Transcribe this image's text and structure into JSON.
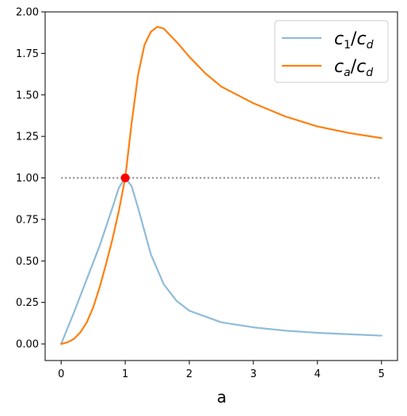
{
  "chart_data": {
    "type": "line",
    "title": "",
    "xlabel": "a",
    "ylabel": "",
    "xlim": [
      -0.25,
      5.25
    ],
    "ylim": [
      -0.1,
      2.0
    ],
    "x_ticks": [
      "0",
      "1",
      "2",
      "3",
      "4",
      "5"
    ],
    "y_ticks": [
      "0.00",
      "0.25",
      "0.50",
      "0.75",
      "1.00",
      "1.25",
      "1.50",
      "1.75",
      "2.00"
    ],
    "grid": false,
    "legend_position": "upper right",
    "series": [
      {
        "name": "c1/cd",
        "legend_main": "c",
        "legend_sub": "1",
        "legend_sub2": "d",
        "color": "#8fbcd8",
        "x": [
          0.0,
          0.2,
          0.4,
          0.6,
          0.8,
          0.9,
          1.0,
          1.1,
          1.2,
          1.4,
          1.6,
          1.8,
          2.0,
          2.5,
          3.0,
          3.5,
          4.0,
          4.5,
          5.0
        ],
        "y": [
          0.0,
          0.19,
          0.39,
          0.59,
          0.82,
          0.94,
          1.0,
          0.95,
          0.82,
          0.54,
          0.36,
          0.26,
          0.2,
          0.13,
          0.1,
          0.08,
          0.067,
          0.058,
          0.05
        ]
      },
      {
        "name": "ca/cd",
        "legend_main": "c",
        "legend_sub": "a",
        "legend_sub2": "d",
        "color": "#ff7f0e",
        "x": [
          0.0,
          0.1,
          0.2,
          0.3,
          0.4,
          0.5,
          0.6,
          0.7,
          0.8,
          0.9,
          1.0,
          1.1,
          1.2,
          1.3,
          1.4,
          1.5,
          1.6,
          1.7,
          1.8,
          2.0,
          2.25,
          2.5,
          3.0,
          3.5,
          4.0,
          4.5,
          5.0
        ],
        "y": [
          0.0,
          0.01,
          0.03,
          0.07,
          0.13,
          0.22,
          0.34,
          0.48,
          0.63,
          0.8,
          1.0,
          1.33,
          1.62,
          1.8,
          1.88,
          1.91,
          1.9,
          1.86,
          1.82,
          1.73,
          1.63,
          1.55,
          1.45,
          1.37,
          1.31,
          1.27,
          1.24
        ]
      },
      {
        "name": "reference",
        "color": "#808080",
        "style": "dotted",
        "x": [
          0.0,
          5.0
        ],
        "y": [
          1.0,
          1.0
        ]
      }
    ],
    "markers": [
      {
        "x": 1.0,
        "y": 1.0,
        "color": "#ff0000"
      }
    ]
  }
}
